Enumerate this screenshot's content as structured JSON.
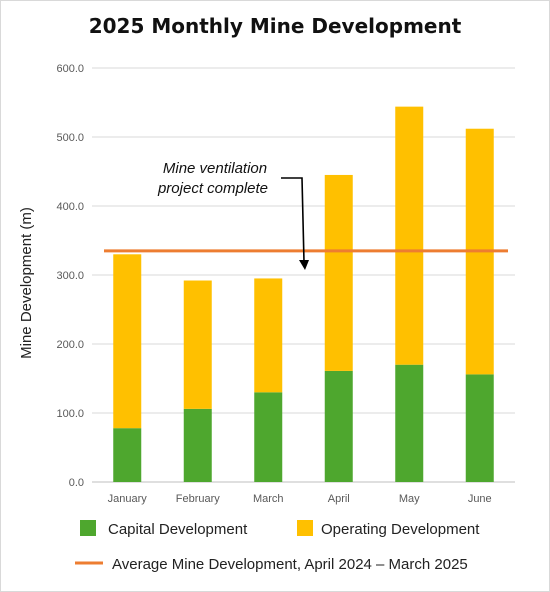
{
  "chart_data": {
    "type": "bar",
    "stacked": true,
    "title": "2025 Monthly Mine Development",
    "ylabel": "Mine Development (m)",
    "xlabel": "",
    "ylim": [
      0,
      600
    ],
    "y_ticks": [
      "0.0",
      "100.0",
      "200.0",
      "300.0",
      "400.0",
      "500.0",
      "600.0"
    ],
    "grid": true,
    "categories": [
      "January",
      "February",
      "March",
      "April",
      "May",
      "June"
    ],
    "series": [
      {
        "name": "Capital Development",
        "color": "#4ea72e",
        "values": [
          78,
          106,
          130,
          161,
          170,
          156
        ]
      },
      {
        "name": "Operating Development",
        "color": "#ffc000",
        "values": [
          252,
          186,
          165,
          284,
          374,
          356
        ]
      }
    ],
    "reference_line": {
      "name": "Average Mine Development, April 2024 – March 2025",
      "value": 335,
      "color": "#ed7d31"
    },
    "annotation": {
      "lines": [
        "Mine ventilation",
        "project complete"
      ],
      "points_between": [
        "March",
        "April"
      ]
    },
    "legend_position": "bottom"
  }
}
